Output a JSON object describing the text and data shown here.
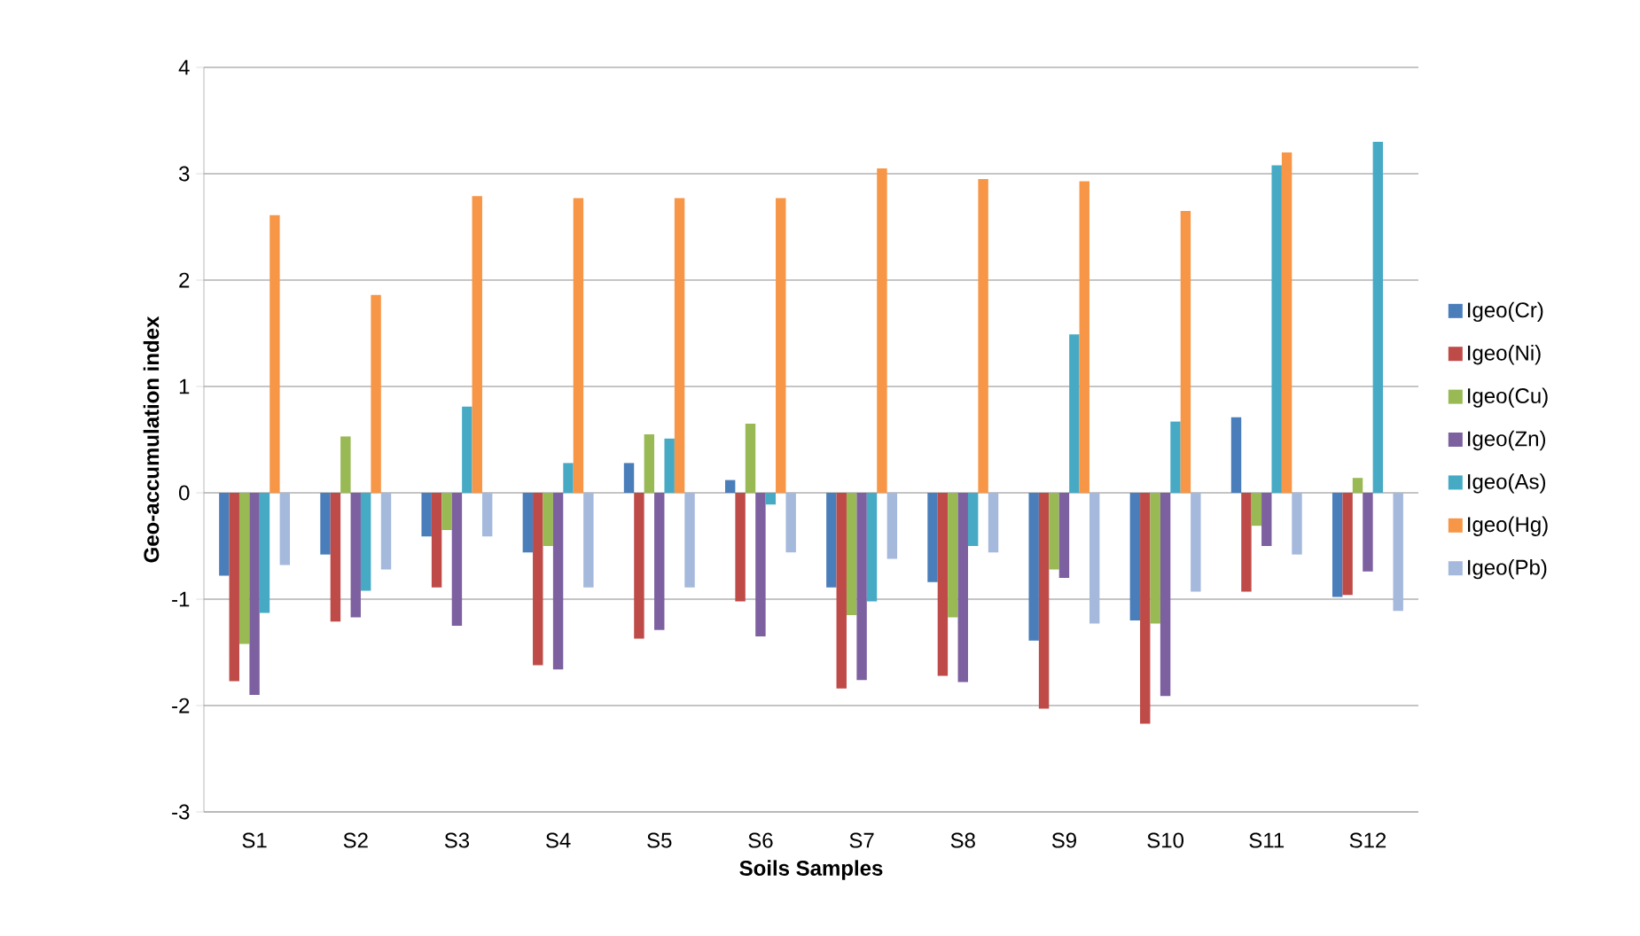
{
  "chart_data": {
    "type": "bar",
    "xlabel": "Soils Samples",
    "ylabel": "Geo-accumulation  index",
    "categories": [
      "S1",
      "S2",
      "S3",
      "S4",
      "S5",
      "S6",
      "S7",
      "S8",
      "S9",
      "S10",
      "S11",
      "S12"
    ],
    "series": [
      {
        "name": "Igeo(Cr)",
        "color": "#4a7ebb",
        "values": [
          -0.78,
          -0.58,
          -0.41,
          -0.56,
          0.28,
          0.12,
          -0.89,
          -0.84,
          -1.39,
          -1.2,
          0.71,
          -0.98
        ]
      },
      {
        "name": "Igeo(Ni)",
        "color": "#be4b48",
        "values": [
          -1.77,
          -1.21,
          -0.89,
          -1.62,
          -1.37,
          -1.02,
          -1.84,
          -1.72,
          -2.03,
          -2.17,
          -0.93,
          -0.96
        ]
      },
      {
        "name": "Igeo(Cu)",
        "color": "#98b954",
        "values": [
          -1.42,
          0.53,
          -0.35,
          -0.5,
          0.55,
          0.65,
          -1.15,
          -1.17,
          -0.72,
          -1.23,
          -0.31,
          0.14
        ]
      },
      {
        "name": "Igeo(Zn)",
        "color": "#7d60a0",
        "values": [
          -1.9,
          -1.17,
          -1.25,
          -1.66,
          -1.29,
          -1.35,
          -1.76,
          -1.78,
          -0.8,
          -1.91,
          -0.5,
          -0.74
        ]
      },
      {
        "name": "Igeo(As)",
        "color": "#46aac5",
        "values": [
          -1.13,
          -0.92,
          0.81,
          0.28,
          0.51,
          -0.11,
          -1.02,
          -0.5,
          1.49,
          0.67,
          3.08,
          3.3
        ]
      },
      {
        "name": "Igeo(Hg)",
        "color": "#f79646",
        "values": [
          2.61,
          1.86,
          2.79,
          2.77,
          2.77,
          2.77,
          3.05,
          2.95,
          2.93,
          2.65,
          3.2,
          null
        ]
      },
      {
        "name": "Igeo(Pb)",
        "color": "#a5b9dd",
        "values": [
          -0.68,
          -0.72,
          -0.41,
          -0.89,
          -0.89,
          -0.56,
          -0.62,
          -0.56,
          -1.23,
          -0.93,
          -0.58,
          -1.11
        ]
      }
    ],
    "ylim": [
      -3,
      4
    ],
    "yticks": [
      -3,
      -2,
      -1,
      0,
      1,
      2,
      3,
      4
    ],
    "grid": "y",
    "legend": "right"
  }
}
